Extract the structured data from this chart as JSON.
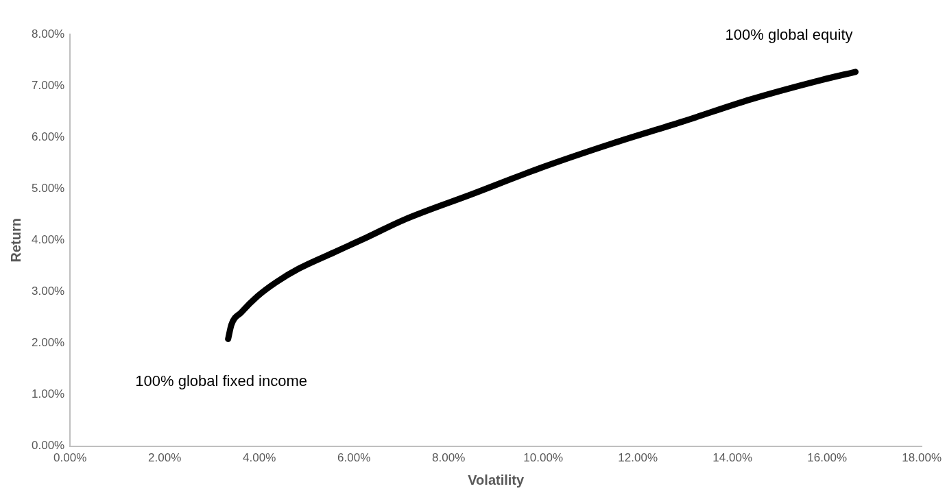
{
  "chart_data": {
    "type": "line",
    "xlabel": "Volatility",
    "ylabel": "Return",
    "x": [
      3.34,
      3.41,
      3.62,
      3.96,
      4.35,
      4.84,
      5.57,
      6.26,
      7.04,
      8.51,
      9.99,
      11.46,
      12.93,
      14.4,
      15.87,
      16.6
    ],
    "series": [
      {
        "color": "#000000",
        "values": [
          2.08,
          2.36,
          2.6,
          2.91,
          3.18,
          3.45,
          3.76,
          4.05,
          4.39,
          4.9,
          5.42,
          5.88,
          6.3,
          6.74,
          7.11,
          7.27
        ]
      }
    ],
    "xlim": [
      0,
      18
    ],
    "xticks": [
      {
        "value": 0,
        "label": "0.00%"
      },
      {
        "value": 2,
        "label": "2.00%"
      },
      {
        "value": 4,
        "label": "4.00%"
      },
      {
        "value": 6,
        "label": "6.00%"
      },
      {
        "value": 8,
        "label": "8.00%"
      },
      {
        "value": 10,
        "label": "10.00%"
      },
      {
        "value": 12,
        "label": "12.00%"
      },
      {
        "value": 14,
        "label": "14.00%"
      },
      {
        "value": 16,
        "label": "16.00%"
      },
      {
        "value": 18,
        "label": "18.00%"
      }
    ],
    "ylim": [
      0,
      8
    ],
    "yticks": [
      {
        "value": 0,
        "label": "0.00%"
      },
      {
        "value": 1,
        "label": "1.00%"
      },
      {
        "value": 2,
        "label": "2.00%"
      },
      {
        "value": 3,
        "label": "3.00%"
      },
      {
        "value": 4,
        "label": "4.00%"
      },
      {
        "value": 5,
        "label": "5.00%"
      },
      {
        "value": 6,
        "label": "6.00%"
      },
      {
        "value": 7,
        "label": "7.00%"
      },
      {
        "value": 8,
        "label": "8.00%"
      }
    ],
    "annotations": [
      {
        "text": "100% global fixed income",
        "x": 3.34,
        "y": 2.08
      },
      {
        "text": "100% global equity",
        "x": 16.6,
        "y": 7.27
      }
    ],
    "grid": false,
    "legend": false,
    "marker": "none",
    "line_style": "solid"
  }
}
